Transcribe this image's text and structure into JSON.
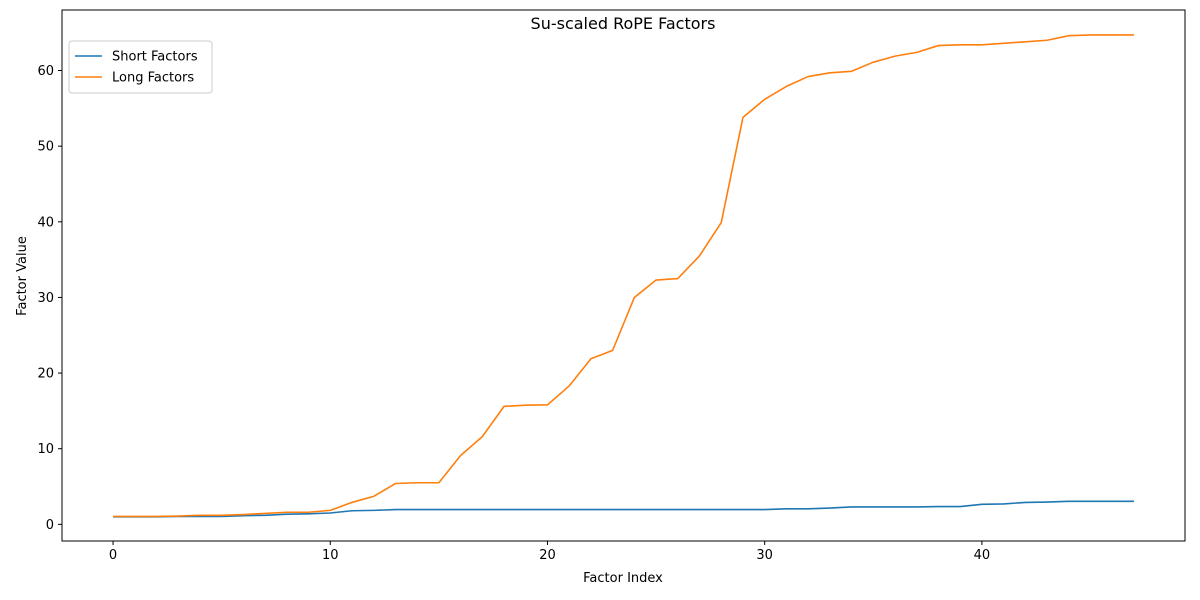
{
  "chart_data": {
    "type": "line",
    "title": "Su-scaled RoPE Factors",
    "xlabel": "Factor Index",
    "ylabel": "Factor Value",
    "xlim": [
      -2.35,
      49.35
    ],
    "ylim": [
      -2.2,
      68.0
    ],
    "xticks": [
      0,
      10,
      20,
      30,
      40
    ],
    "yticks": [
      0,
      10,
      20,
      30,
      40,
      50,
      60
    ],
    "grid": false,
    "legend_position": "upper-left",
    "x": [
      0,
      1,
      2,
      3,
      4,
      5,
      6,
      7,
      8,
      9,
      10,
      11,
      12,
      13,
      14,
      15,
      16,
      17,
      18,
      19,
      20,
      21,
      22,
      23,
      24,
      25,
      26,
      27,
      28,
      29,
      30,
      31,
      32,
      33,
      34,
      35,
      36,
      37,
      38,
      39,
      40,
      41,
      42,
      43,
      44,
      45,
      46,
      47
    ],
    "series": [
      {
        "name": "Short Factors",
        "color": "#1f77b4",
        "values": [
          1.0,
          1.0,
          1.0,
          1.05,
          1.05,
          1.05,
          1.15,
          1.2,
          1.35,
          1.4,
          1.5,
          1.8,
          1.85,
          1.95,
          1.95,
          1.95,
          1.95,
          1.95,
          1.95,
          1.95,
          1.95,
          1.95,
          1.95,
          1.95,
          1.95,
          1.95,
          1.95,
          1.95,
          1.95,
          1.95,
          1.95,
          2.05,
          2.05,
          2.15,
          2.3,
          2.3,
          2.3,
          2.3,
          2.35,
          2.35,
          2.65,
          2.7,
          2.9,
          2.95,
          3.05,
          3.05,
          3.05,
          3.05
        ]
      },
      {
        "name": "Long Factors",
        "color": "#ff7f0e",
        "values": [
          1.05,
          1.05,
          1.05,
          1.1,
          1.2,
          1.2,
          1.3,
          1.45,
          1.6,
          1.6,
          1.85,
          2.9,
          3.7,
          5.4,
          5.5,
          5.5,
          9.1,
          11.6,
          15.6,
          15.75,
          15.8,
          18.3,
          21.9,
          23.0,
          30.0,
          32.3,
          32.5,
          35.5,
          39.9,
          53.8,
          56.2,
          57.9,
          59.2,
          59.7,
          59.9,
          61.1,
          61.9,
          62.4,
          63.3,
          63.4,
          63.4,
          63.6,
          63.8,
          64.0,
          64.6,
          64.7,
          64.7,
          64.7
        ]
      }
    ]
  }
}
